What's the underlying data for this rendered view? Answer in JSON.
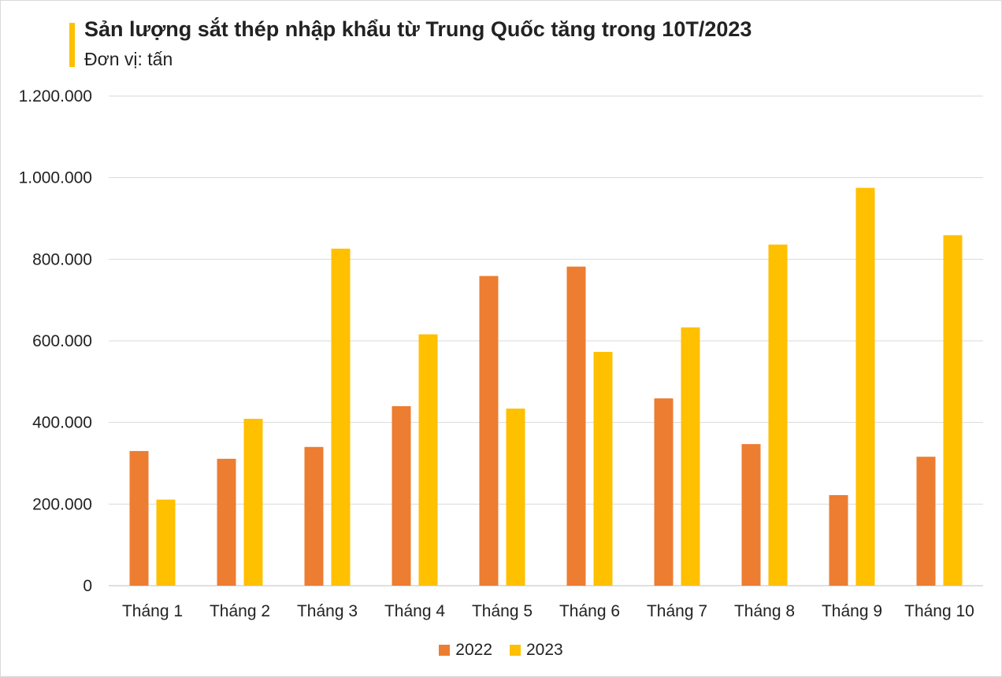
{
  "chart_data": {
    "type": "bar",
    "title": "Sản lượng sắt thép nhập khẩu từ Trung Quốc tăng trong 10T/2023",
    "subtitle": "Đơn vị: tấn",
    "categories": [
      "Tháng 1",
      "Tháng 2",
      "Tháng 3",
      "Tháng 4",
      "Tháng 5",
      "Tháng 6",
      "Tháng 7",
      "Tháng 8",
      "Tháng 9",
      "Tháng 10"
    ],
    "series": [
      {
        "name": "2022",
        "color": "#ed7d31",
        "values": [
          330000,
          311000,
          340000,
          440000,
          759000,
          782000,
          459000,
          347000,
          222000,
          316000
        ]
      },
      {
        "name": "2023",
        "color": "#ffc000",
        "values": [
          211000,
          409000,
          826000,
          616000,
          434000,
          573000,
          633000,
          836000,
          975000,
          859000
        ]
      }
    ],
    "ylim": [
      0,
      1200000
    ],
    "yticks": [
      0,
      200000,
      400000,
      600000,
      800000,
      1000000,
      1200000
    ],
    "ytick_labels": [
      "0",
      "200.000",
      "400.000",
      "600.000",
      "800.000",
      "1.000.000",
      "1.200.000"
    ],
    "grid": true,
    "legend_position": "bottom"
  }
}
